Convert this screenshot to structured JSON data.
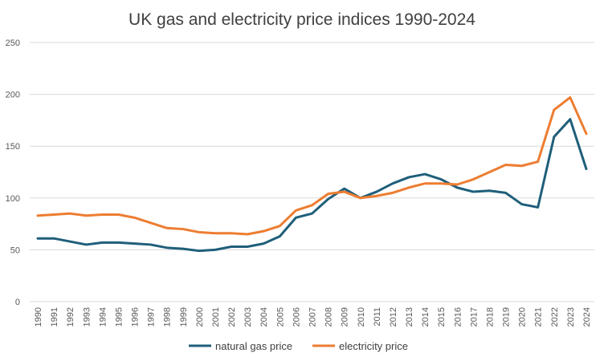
{
  "chart_data": {
    "type": "line",
    "title": "UK gas and electricity price indices 1990-2024",
    "xlabel": "",
    "ylabel": "",
    "ylim": [
      0,
      250
    ],
    "y_ticks": [
      0,
      50,
      100,
      150,
      200,
      250
    ],
    "grid": true,
    "legend_position": "bottom",
    "x": [
      "1990",
      "1991",
      "1992",
      "1993",
      "1994",
      "1995",
      "1996",
      "1997",
      "1998",
      "1999",
      "2000",
      "2001",
      "2002",
      "2003",
      "2004",
      "2005",
      "2006",
      "2007",
      "2008",
      "2009",
      "2010",
      "2011",
      "2012",
      "2013",
      "2014",
      "2015",
      "2016",
      "2017",
      "2018",
      "2019",
      "2020",
      "2021",
      "2022",
      "2023",
      "2024"
    ],
    "series": [
      {
        "name": "natural gas price",
        "color": "#1f5f7a",
        "values": [
          61,
          61,
          58,
          55,
          57,
          57,
          56,
          55,
          52,
          51,
          49,
          50,
          53,
          53,
          56,
          63,
          81,
          85,
          99,
          109,
          100,
          106,
          114,
          120,
          123,
          118,
          110,
          106,
          107,
          105,
          94,
          91,
          159,
          176,
          128
        ]
      },
      {
        "name": "electricity price",
        "color": "#ed7d31",
        "values": [
          83,
          84,
          85,
          83,
          84,
          84,
          81,
          76,
          71,
          70,
          67,
          66,
          66,
          65,
          68,
          73,
          88,
          93,
          104,
          106,
          100,
          102,
          105,
          110,
          114,
          114,
          113,
          118,
          125,
          132,
          131,
          135,
          185,
          197,
          162
        ]
      }
    ]
  }
}
